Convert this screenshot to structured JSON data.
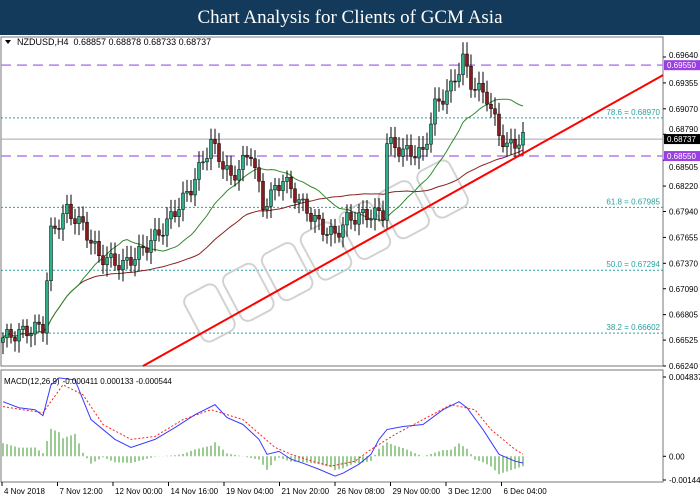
{
  "header": {
    "title": "Chart Analysis for Clients of GCM Asia"
  },
  "chart_data": [
    {
      "type": "candlestick",
      "title": "NZDUSD,H4",
      "ohlc_readout": "0.68857 0.68878 0.68733 0.68737",
      "ylim": [
        0.6624,
        0.6964
      ],
      "y_ticks": [
        "0.69640",
        "0.69355",
        "0.69070",
        "0.68790",
        "0.68505",
        "0.68220",
        "0.67940",
        "0.67655",
        "0.67370",
        "0.67090",
        "0.66805",
        "0.66525",
        "0.66240"
      ],
      "x_ticks": [
        "4 Nov 2018",
        "7 Nov 12:00",
        "12 Nov 00:00",
        "14 Nov 16:00",
        "19 Nov 04:00",
        "21 Nov 20:00",
        "26 Nov 08:00",
        "29 Nov 00:00",
        "3 Dec 12:00",
        "6 Dec 04:00"
      ],
      "close_path": [
        [
          0,
          0.6655
        ],
        [
          10,
          0.6668
        ],
        [
          12,
          0.677
        ],
        [
          16,
          0.6795
        ],
        [
          20,
          0.6778
        ],
        [
          24,
          0.6745
        ],
        [
          30,
          0.6735
        ],
        [
          34,
          0.6748
        ],
        [
          40,
          0.6775
        ],
        [
          47,
          0.682
        ],
        [
          52,
          0.687
        ],
        [
          57,
          0.683
        ],
        [
          62,
          0.686
        ],
        [
          65,
          0.68
        ],
        [
          70,
          0.683
        ],
        [
          75,
          0.68
        ],
        [
          80,
          0.6775
        ],
        [
          83,
          0.6768
        ],
        [
          86,
          0.6785
        ],
        [
          90,
          0.679
        ],
        [
          95,
          0.6792
        ],
        [
          96,
          0.687
        ],
        [
          100,
          0.686
        ],
        [
          105,
          0.6858
        ],
        [
          108,
          0.691
        ],
        [
          112,
          0.693
        ],
        [
          115,
          0.6962
        ],
        [
          117,
          0.6935
        ],
        [
          121,
          0.692
        ],
        [
          124,
          0.688
        ],
        [
          126,
          0.6865
        ],
        [
          130,
          0.6874
        ]
      ],
      "current_price": "0.68737",
      "resistance_levels": [
        {
          "label": "0.69550",
          "value": 0.6955
        },
        {
          "label": "0.68550",
          "value": 0.6855
        }
      ],
      "fibonacci": [
        {
          "label": "78.6 = 0.68970",
          "value": 0.6897
        },
        {
          "label": "61.8 = 0.67985",
          "value": 0.67985
        },
        {
          "label": "50.0 = 0.67294",
          "value": 0.67294
        },
        {
          "label": "38.2 = 0.66602",
          "value": 0.66602
        }
      ],
      "trendline": {
        "from": [
          35,
          0.6624
        ],
        "to": [
          165,
          0.6944
        ]
      },
      "watermark": "GCMASIA",
      "colors": {
        "bull": "#2bb08a",
        "bear": "#8b1a1a",
        "ma_fast": "#2e8b2e",
        "ma_slow": "#8b2020",
        "trendline": "#ff0000",
        "levels": "#b57cf0",
        "fib": "#2aa0a0",
        "current_bg": "#000000",
        "level_bg": "#9a40e0"
      }
    },
    {
      "type": "line",
      "title": "MACD(12,26,9)",
      "readout": "-0.000411 0.000133 -0.000544",
      "ylim": [
        -0.001447,
        0.004837
      ],
      "y_ticks": [
        "0.004837",
        "0.00",
        "-0.001447"
      ],
      "series": [
        {
          "color": "#3a3aff",
          "points": [
            [
              0,
              0.00333
            ],
            [
              4,
              0.00296
            ],
            [
              8,
              0.00284
            ],
            [
              10,
              0.00248
            ],
            [
              12,
              0.00436
            ],
            [
              14,
              0.00478
            ],
            [
              18,
              0.00466
            ],
            [
              22,
              0.00224
            ],
            [
              28,
              0.00103
            ],
            [
              32,
              0.00054
            ],
            [
              38,
              0.00103
            ],
            [
              43,
              0.00175
            ],
            [
              48,
              0.00254
            ],
            [
              53,
              0.00315
            ],
            [
              56,
              0.00236
            ],
            [
              60,
              0.00194
            ],
            [
              64,
              0.00103
            ],
            [
              66,
              0.00012
            ],
            [
              69,
              0.0003
            ],
            [
              72,
              -0.00018
            ],
            [
              75,
              -0.00042
            ],
            [
              79,
              -0.00079
            ],
            [
              83,
              -0.00121
            ],
            [
              85,
              -0.00103
            ],
            [
              89,
              -0.00048
            ],
            [
              92,
              0.00012
            ],
            [
              94,
              0.00103
            ],
            [
              96,
              0.00163
            ],
            [
              100,
              0.00182
            ],
            [
              105,
              0.00194
            ],
            [
              110,
              0.00284
            ],
            [
              114,
              0.00333
            ],
            [
              116,
              0.00296
            ],
            [
              120,
              0.00163
            ],
            [
              124,
              0.00012
            ],
            [
              128,
              -0.0003
            ],
            [
              130,
              -0.00041
            ]
          ]
        },
        {
          "color": "#ff2020",
          "points": [
            [
              0,
              0.00303
            ],
            [
              5,
              0.00284
            ],
            [
              10,
              0.00266
            ],
            [
              15,
              0.00436
            ],
            [
              20,
              0.00375
            ],
            [
              25,
              0.00194
            ],
            [
              32,
              0.00103
            ],
            [
              38,
              0.00121
            ],
            [
              45,
              0.00224
            ],
            [
              52,
              0.00284
            ],
            [
              60,
              0.00224
            ],
            [
              68,
              0.00054
            ],
            [
              72,
              0.00012
            ],
            [
              78,
              -0.00036
            ],
            [
              82,
              -0.0006
            ],
            [
              88,
              -0.0003
            ],
            [
              92,
              0.00042
            ],
            [
              98,
              0.00133
            ],
            [
              105,
              0.00224
            ],
            [
              112,
              0.00315
            ],
            [
              118,
              0.00284
            ],
            [
              122,
              0.00163
            ],
            [
              128,
              0.00042
            ],
            [
              130,
              0.000133
            ]
          ]
        }
      ]
    }
  ]
}
